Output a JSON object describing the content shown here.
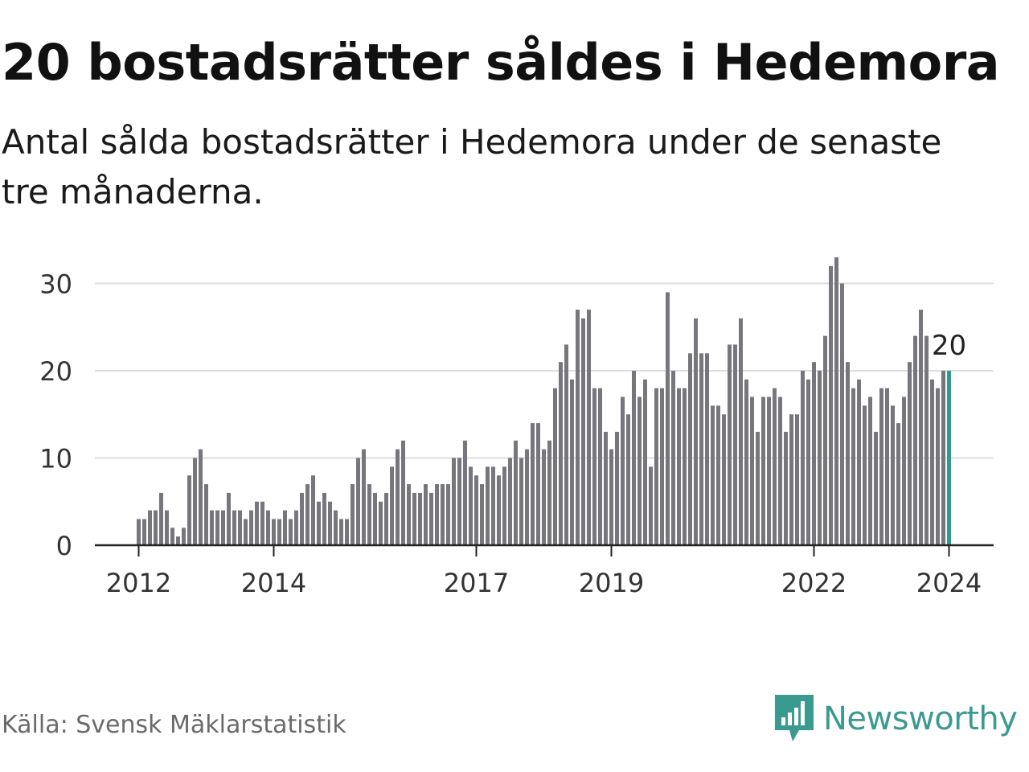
{
  "title": "20 bostadsrätter såldes i Hedemora",
  "subtitle": "Antal sålda bostadsrätter i Hedemora under de senaste tre månaderna.",
  "source": "Källa: Svensk Mäklarstatistik",
  "brand": "Newsworthy",
  "colors": {
    "bar": "#76767c",
    "highlight": "#2a9d8f",
    "grid": "#dddddd",
    "axis": "#222222",
    "brand": "#3a9a8f"
  },
  "chart_data": {
    "type": "bar",
    "title": "20 bostadsrätter såldes i Hedemora",
    "xlabel": "",
    "ylabel": "",
    "ylim": [
      0,
      33
    ],
    "yticks": [
      0,
      10,
      20,
      30
    ],
    "grid": true,
    "x_start": "2012-01",
    "xticks": [
      {
        "label": "2012",
        "index": 0
      },
      {
        "label": "2014",
        "index": 24
      },
      {
        "label": "2017",
        "index": 60
      },
      {
        "label": "2019",
        "index": 84
      },
      {
        "label": "2022",
        "index": 120
      },
      {
        "label": "2024",
        "index": 144
      }
    ],
    "values": [
      3,
      3,
      4,
      4,
      6,
      4,
      2,
      1,
      2,
      8,
      10,
      11,
      7,
      4,
      4,
      4,
      6,
      4,
      4,
      3,
      4,
      5,
      5,
      4,
      3,
      3,
      4,
      3,
      4,
      6,
      7,
      8,
      5,
      6,
      5,
      4,
      3,
      3,
      7,
      10,
      11,
      7,
      6,
      5,
      6,
      9,
      11,
      12,
      7,
      6,
      6,
      7,
      6,
      7,
      7,
      7,
      10,
      10,
      12,
      9,
      8,
      7,
      9,
      9,
      8,
      9,
      10,
      12,
      10,
      11,
      14,
      14,
      11,
      12,
      18,
      21,
      23,
      19,
      27,
      26,
      27,
      18,
      18,
      13,
      11,
      13,
      17,
      15,
      20,
      17,
      19,
      9,
      18,
      18,
      29,
      20,
      18,
      18,
      22,
      26,
      22,
      22,
      16,
      16,
      15,
      23,
      23,
      26,
      19,
      17,
      13,
      17,
      17,
      18,
      17,
      13,
      15,
      15,
      20,
      19,
      21,
      20,
      24,
      32,
      33,
      30,
      21,
      18,
      19,
      16,
      17,
      13,
      18,
      18,
      16,
      14,
      17,
      21,
      24,
      27,
      24,
      19,
      18,
      20,
      20
    ],
    "highlight_index": 144,
    "highlight_label": "20"
  }
}
